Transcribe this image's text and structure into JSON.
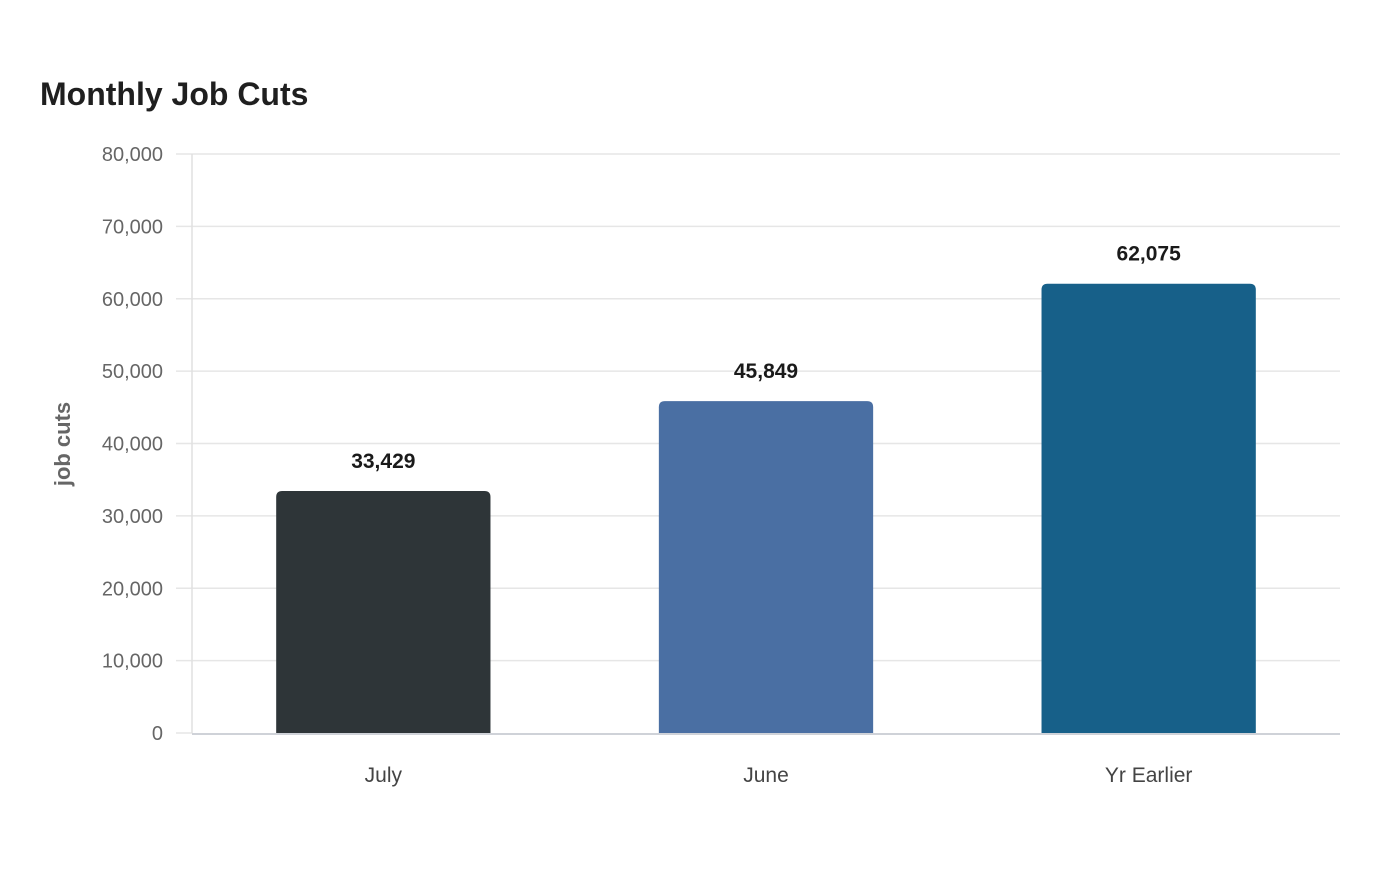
{
  "chart_data": {
    "type": "bar",
    "title": "Monthly Job Cuts",
    "xlabel": "",
    "ylabel": "job cuts",
    "categories": [
      "July",
      "June",
      "Yr Earlier"
    ],
    "values": [
      33429,
      45849,
      62075
    ],
    "value_labels": [
      "33,429",
      "45,849",
      "62,075"
    ],
    "colors": [
      "#2e3538",
      "#4a6fa3",
      "#176089"
    ],
    "ylim": [
      0,
      80000
    ],
    "yticks": [
      0,
      10000,
      20000,
      30000,
      40000,
      50000,
      60000,
      70000,
      80000
    ],
    "ytick_labels": [
      "0",
      "10,000",
      "20,000",
      "30,000",
      "40,000",
      "50,000",
      "60,000",
      "70,000",
      "80,000"
    ],
    "grid": true,
    "legend": "none"
  }
}
